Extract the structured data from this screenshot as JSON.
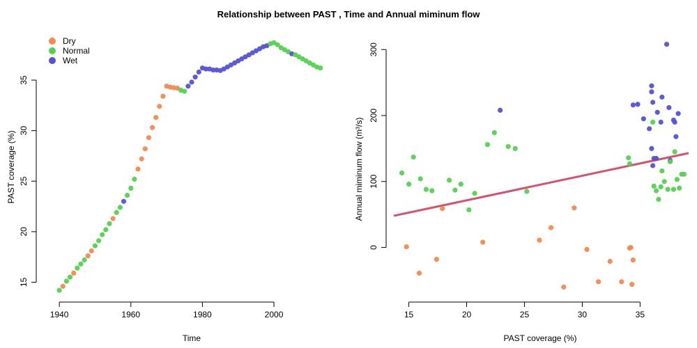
{
  "title": "Relationship between PAST , Time and Annual miminum flow",
  "colors": {
    "Dry": "#F4884E",
    "Normal": "#55D151",
    "Wet": "#5352D8",
    "fit_line": "#D7506C"
  },
  "chart_data": [
    {
      "type": "scatter",
      "xlabel": "Time",
      "ylabel": "PAST coverage (%)",
      "xlim": [
        1939,
        2015
      ],
      "ylim": [
        14,
        39
      ],
      "xticks": [
        1940,
        1960,
        1980,
        2000
      ],
      "yticks": [
        15,
        20,
        25,
        30,
        35
      ],
      "legend": {
        "position": "top-left",
        "entries": [
          "Dry",
          "Normal",
          "Wet"
        ]
      },
      "points": [
        {
          "x": 1940,
          "y": 14.2,
          "c": "Normal"
        },
        {
          "x": 1941,
          "y": 14.6,
          "c": "Dry"
        },
        {
          "x": 1942,
          "y": 15.1,
          "c": "Normal"
        },
        {
          "x": 1943,
          "y": 15.5,
          "c": "Normal"
        },
        {
          "x": 1944,
          "y": 15.9,
          "c": "Dry"
        },
        {
          "x": 1945,
          "y": 16.4,
          "c": "Normal"
        },
        {
          "x": 1946,
          "y": 16.8,
          "c": "Normal"
        },
        {
          "x": 1947,
          "y": 17.2,
          "c": "Normal"
        },
        {
          "x": 1948,
          "y": 17.6,
          "c": "Dry"
        },
        {
          "x": 1949,
          "y": 18.1,
          "c": "Dry"
        },
        {
          "x": 1950,
          "y": 18.6,
          "c": "Normal"
        },
        {
          "x": 1951,
          "y": 19.1,
          "c": "Normal"
        },
        {
          "x": 1952,
          "y": 19.7,
          "c": "Normal"
        },
        {
          "x": 1953,
          "y": 20.2,
          "c": "Normal"
        },
        {
          "x": 1954,
          "y": 20.8,
          "c": "Normal"
        },
        {
          "x": 1955,
          "y": 21.3,
          "c": "Dry"
        },
        {
          "x": 1956,
          "y": 21.9,
          "c": "Normal"
        },
        {
          "x": 1957,
          "y": 22.4,
          "c": "Normal"
        },
        {
          "x": 1958,
          "y": 23.0,
          "c": "Wet"
        },
        {
          "x": 1959,
          "y": 23.6,
          "c": "Normal"
        },
        {
          "x": 1960,
          "y": 24.3,
          "c": "Normal"
        },
        {
          "x": 1961,
          "y": 25.2,
          "c": "Normal"
        },
        {
          "x": 1962,
          "y": 26.2,
          "c": "Dry"
        },
        {
          "x": 1963,
          "y": 27.2,
          "c": "Dry"
        },
        {
          "x": 1964,
          "y": 28.2,
          "c": "Dry"
        },
        {
          "x": 1965,
          "y": 29.3,
          "c": "Dry"
        },
        {
          "x": 1966,
          "y": 30.3,
          "c": "Dry"
        },
        {
          "x": 1967,
          "y": 31.3,
          "c": "Dry"
        },
        {
          "x": 1968,
          "y": 32.4,
          "c": "Dry"
        },
        {
          "x": 1969,
          "y": 33.4,
          "c": "Dry"
        },
        {
          "x": 1970,
          "y": 34.4,
          "c": "Dry"
        },
        {
          "x": 1971,
          "y": 34.3,
          "c": "Dry"
        },
        {
          "x": 1972,
          "y": 34.25,
          "c": "Dry"
        },
        {
          "x": 1973,
          "y": 34.2,
          "c": "Dry"
        },
        {
          "x": 1974,
          "y": 34.0,
          "c": "Normal"
        },
        {
          "x": 1975,
          "y": 33.9,
          "c": "Normal"
        },
        {
          "x": 1976,
          "y": 34.4,
          "c": "Wet"
        },
        {
          "x": 1977,
          "y": 34.8,
          "c": "Wet"
        },
        {
          "x": 1978,
          "y": 35.3,
          "c": "Wet"
        },
        {
          "x": 1979,
          "y": 35.8,
          "c": "Wet"
        },
        {
          "x": 1980,
          "y": 36.2,
          "c": "Wet"
        },
        {
          "x": 1981,
          "y": 36.1,
          "c": "Wet"
        },
        {
          "x": 1982,
          "y": 36.1,
          "c": "Wet"
        },
        {
          "x": 1983,
          "y": 36.0,
          "c": "Wet"
        },
        {
          "x": 1984,
          "y": 36.0,
          "c": "Wet"
        },
        {
          "x": 1985,
          "y": 35.95,
          "c": "Wet"
        },
        {
          "x": 1986,
          "y": 36.1,
          "c": "Wet"
        },
        {
          "x": 1987,
          "y": 36.3,
          "c": "Wet"
        },
        {
          "x": 1988,
          "y": 36.5,
          "c": "Wet"
        },
        {
          "x": 1989,
          "y": 36.7,
          "c": "Wet"
        },
        {
          "x": 1990,
          "y": 36.9,
          "c": "Wet"
        },
        {
          "x": 1991,
          "y": 37.1,
          "c": "Wet"
        },
        {
          "x": 1992,
          "y": 37.3,
          "c": "Wet"
        },
        {
          "x": 1993,
          "y": 37.5,
          "c": "Wet"
        },
        {
          "x": 1994,
          "y": 37.7,
          "c": "Wet"
        },
        {
          "x": 1995,
          "y": 37.9,
          "c": "Wet"
        },
        {
          "x": 1996,
          "y": 38.1,
          "c": "Wet"
        },
        {
          "x": 1997,
          "y": 38.3,
          "c": "Wet"
        },
        {
          "x": 1998,
          "y": 38.4,
          "c": "Wet"
        },
        {
          "x": 1999,
          "y": 38.6,
          "c": "Normal"
        },
        {
          "x": 2000,
          "y": 38.7,
          "c": "Normal"
        },
        {
          "x": 2001,
          "y": 38.5,
          "c": "Normal"
        },
        {
          "x": 2002,
          "y": 38.2,
          "c": "Normal"
        },
        {
          "x": 2003,
          "y": 38.0,
          "c": "Normal"
        },
        {
          "x": 2004,
          "y": 37.8,
          "c": "Normal"
        },
        {
          "x": 2005,
          "y": 37.6,
          "c": "Wet"
        },
        {
          "x": 2006,
          "y": 37.5,
          "c": "Normal"
        },
        {
          "x": 2007,
          "y": 37.3,
          "c": "Normal"
        },
        {
          "x": 2008,
          "y": 37.1,
          "c": "Normal"
        },
        {
          "x": 2009,
          "y": 36.9,
          "c": "Normal"
        },
        {
          "x": 2010,
          "y": 36.7,
          "c": "Normal"
        },
        {
          "x": 2011,
          "y": 36.5,
          "c": "Normal"
        },
        {
          "x": 2012,
          "y": 36.3,
          "c": "Normal"
        },
        {
          "x": 2013,
          "y": 36.2,
          "c": "Normal"
        }
      ]
    },
    {
      "type": "scatter",
      "xlabel": "PAST coverage (%)",
      "ylabel": "Annual miminum flow (m³/s)",
      "xlim": [
        13.7,
        39.2
      ],
      "ylim": [
        -68,
        315
      ],
      "xticks": [
        15,
        20,
        25,
        30,
        35
      ],
      "yticks": [
        0,
        100,
        200,
        300
      ],
      "fit_line": {
        "x": [
          13.7,
          39.2
        ],
        "y": [
          48,
          143
        ]
      },
      "points": [
        {
          "x": 14.4,
          "y": 113,
          "c": "Normal"
        },
        {
          "x": 15.0,
          "y": 96,
          "c": "Normal"
        },
        {
          "x": 15.4,
          "y": 137,
          "c": "Normal"
        },
        {
          "x": 16.0,
          "y": 104,
          "c": "Normal"
        },
        {
          "x": 16.5,
          "y": 88,
          "c": "Normal"
        },
        {
          "x": 17.0,
          "y": 86,
          "c": "Normal"
        },
        {
          "x": 18.5,
          "y": 102,
          "c": "Normal"
        },
        {
          "x": 19.0,
          "y": 87,
          "c": "Normal"
        },
        {
          "x": 19.5,
          "y": 96,
          "c": "Normal"
        },
        {
          "x": 20.2,
          "y": 57,
          "c": "Normal"
        },
        {
          "x": 20.7,
          "y": 82,
          "c": "Normal"
        },
        {
          "x": 21.8,
          "y": 156,
          "c": "Normal"
        },
        {
          "x": 22.4,
          "y": 174,
          "c": "Normal"
        },
        {
          "x": 23.6,
          "y": 153,
          "c": "Normal"
        },
        {
          "x": 24.2,
          "y": 150,
          "c": "Normal"
        },
        {
          "x": 25.2,
          "y": 85,
          "c": "Normal"
        },
        {
          "x": 14.8,
          "y": 1,
          "c": "Dry"
        },
        {
          "x": 15.9,
          "y": -39,
          "c": "Dry"
        },
        {
          "x": 17.4,
          "y": -18,
          "c": "Dry"
        },
        {
          "x": 17.9,
          "y": 59,
          "c": "Dry"
        },
        {
          "x": 21.4,
          "y": 8,
          "c": "Dry"
        },
        {
          "x": 26.3,
          "y": 11,
          "c": "Dry"
        },
        {
          "x": 27.3,
          "y": 30,
          "c": "Dry"
        },
        {
          "x": 28.4,
          "y": -60,
          "c": "Dry"
        },
        {
          "x": 29.3,
          "y": 60,
          "c": "Dry"
        },
        {
          "x": 30.4,
          "y": -3,
          "c": "Dry"
        },
        {
          "x": 31.4,
          "y": -52,
          "c": "Dry"
        },
        {
          "x": 32.4,
          "y": -21,
          "c": "Dry"
        },
        {
          "x": 33.4,
          "y": -52,
          "c": "Dry"
        },
        {
          "x": 34.1,
          "y": -1,
          "c": "Dry"
        },
        {
          "x": 34.2,
          "y": 0,
          "c": "Dry"
        },
        {
          "x": 34.3,
          "y": -56,
          "c": "Dry"
        },
        {
          "x": 34.4,
          "y": -19,
          "c": "Dry"
        },
        {
          "x": 22.9,
          "y": 208,
          "c": "Wet"
        },
        {
          "x": 34.4,
          "y": 216,
          "c": "Wet"
        },
        {
          "x": 34.8,
          "y": 217,
          "c": "Wet"
        },
        {
          "x": 35.3,
          "y": 195,
          "c": "Wet"
        },
        {
          "x": 35.8,
          "y": 180,
          "c": "Wet"
        },
        {
          "x": 36.0,
          "y": 245,
          "c": "Wet"
        },
        {
          "x": 36.0,
          "y": 236,
          "c": "Wet"
        },
        {
          "x": 36.1,
          "y": 220,
          "c": "Wet"
        },
        {
          "x": 36.0,
          "y": 150,
          "c": "Wet"
        },
        {
          "x": 36.2,
          "y": 135,
          "c": "Wet"
        },
        {
          "x": 36.1,
          "y": 124,
          "c": "Wet"
        },
        {
          "x": 36.5,
          "y": 205,
          "c": "Wet"
        },
        {
          "x": 36.9,
          "y": 228,
          "c": "Wet"
        },
        {
          "x": 37.3,
          "y": 308,
          "c": "Wet"
        },
        {
          "x": 37.5,
          "y": 212,
          "c": "Wet"
        },
        {
          "x": 37.9,
          "y": 193,
          "c": "Wet"
        },
        {
          "x": 38.0,
          "y": 190,
          "c": "Wet"
        },
        {
          "x": 38.1,
          "y": 168,
          "c": "Wet"
        },
        {
          "x": 38.3,
          "y": 203,
          "c": "Wet"
        },
        {
          "x": 37.6,
          "y": 132,
          "c": "Wet"
        },
        {
          "x": 36.8,
          "y": 190,
          "c": "Wet"
        },
        {
          "x": 36.4,
          "y": 135,
          "c": "Wet"
        },
        {
          "x": 34.0,
          "y": 136,
          "c": "Normal"
        },
        {
          "x": 34.1,
          "y": 127,
          "c": "Normal"
        },
        {
          "x": 36.1,
          "y": 190,
          "c": "Normal"
        },
        {
          "x": 36.2,
          "y": 93,
          "c": "Normal"
        },
        {
          "x": 36.4,
          "y": 86,
          "c": "Normal"
        },
        {
          "x": 36.6,
          "y": 73,
          "c": "Normal"
        },
        {
          "x": 36.8,
          "y": 92,
          "c": "Normal"
        },
        {
          "x": 36.9,
          "y": 116,
          "c": "Normal"
        },
        {
          "x": 37.1,
          "y": 100,
          "c": "Normal"
        },
        {
          "x": 37.4,
          "y": 88,
          "c": "Normal"
        },
        {
          "x": 37.6,
          "y": 130,
          "c": "Normal"
        },
        {
          "x": 37.9,
          "y": 88,
          "c": "Normal"
        },
        {
          "x": 38.0,
          "y": 145,
          "c": "Normal"
        },
        {
          "x": 38.2,
          "y": 103,
          "c": "Normal"
        },
        {
          "x": 38.4,
          "y": 90,
          "c": "Normal"
        },
        {
          "x": 38.6,
          "y": 111,
          "c": "Normal"
        },
        {
          "x": 38.8,
          "y": 111,
          "c": "Normal"
        }
      ]
    }
  ]
}
